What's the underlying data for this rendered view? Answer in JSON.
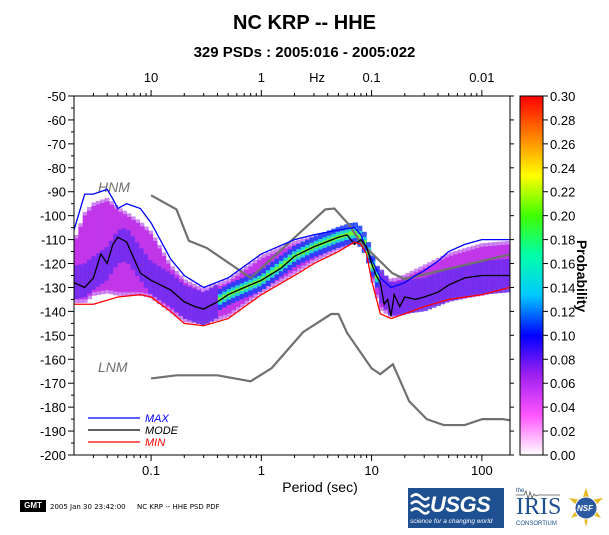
{
  "title": "NC KRP -- HHE",
  "subtitle": "329 PSDs : 2005:016 - 2005:022",
  "footer": {
    "gmt": "GMT",
    "timestamp": "2005 Jan 30 23:42:00",
    "caption": "NC KRP -- HHE PSD PDF"
  },
  "logos": {
    "usgs": "USGS",
    "usgs_tagline": "science for a changing world",
    "iris": "IRIS",
    "iris_the": "the",
    "iris_sub": "CONSORTIUM",
    "nsf": "NSF"
  },
  "chart_data": {
    "type": "heatmap",
    "xlabel": "Period (sec)",
    "x_scale": "log",
    "xlim": [
      0.02,
      180
    ],
    "x_ticks": [
      {
        "value": 0.1,
        "label": "0.1"
      },
      {
        "value": 1,
        "label": "1"
      },
      {
        "value": 10,
        "label": "10"
      },
      {
        "value": 100,
        "label": "100"
      }
    ],
    "top_axis_label": "Hz",
    "top_ticks": [
      {
        "value": 0.1,
        "label": "10"
      },
      {
        "value": 1,
        "label": "1"
      },
      {
        "value": 10,
        "label": "0.1"
      },
      {
        "value": 100,
        "label": "0.01"
      }
    ],
    "ylim": [
      -200,
      -50
    ],
    "y_ticks": [
      -50,
      -60,
      -70,
      -80,
      -90,
      -100,
      -110,
      -120,
      -130,
      -140,
      -150,
      -160,
      -170,
      -180,
      -190,
      -200
    ],
    "colorbar": {
      "label": "Probability",
      "range": [
        0.0,
        0.3
      ],
      "ticks": [
        "0.00",
        "0.02",
        "0.04",
        "0.06",
        "0.08",
        "0.10",
        "0.12",
        "0.14",
        "0.16",
        "0.18",
        "0.20",
        "0.22",
        "0.24",
        "0.26",
        "0.28",
        "0.30"
      ],
      "colors": [
        "#ffffff",
        "#ff55ff",
        "#a020f0",
        "#0000ff",
        "#00c8ff",
        "#00ffaa",
        "#40ff00",
        "#ffff00",
        "#ff8000",
        "#ff0000"
      ]
    },
    "reference_labels": {
      "nhnm": "HNM",
      "nlnm": "LNM"
    },
    "reference_color": "#707070",
    "nhnm": {
      "x": [
        0.1,
        0.17,
        0.22,
        0.32,
        0.8,
        3.8,
        4.6,
        6.3,
        7.9,
        15.4,
        20,
        354
      ],
      "y": [
        -91.5,
        -97.4,
        -110.5,
        -113.5,
        -126,
        -97.4,
        -97,
        -104,
        -111,
        -124,
        -126.5,
        -113
      ]
    },
    "nlnm": {
      "x": [
        0.1,
        0.17,
        0.4,
        0.8,
        1.24,
        2.4,
        4.3,
        5,
        6,
        10,
        12,
        15.6,
        21.9,
        31.6,
        45,
        70,
        101,
        154,
        328,
        600
      ],
      "y": [
        -168,
        -166.7,
        -166.7,
        -169.2,
        -163.7,
        -148.6,
        -141.1,
        -141.1,
        -149,
        -163.8,
        -166.2,
        -162.1,
        -177.5,
        -185,
        -187.5,
        -187.5,
        -185,
        -185,
        -187.5,
        -184.4
      ]
    },
    "legend": {
      "position": "bottom-left",
      "entries": [
        {
          "name": "MAX",
          "color": "#0000ff"
        },
        {
          "name": "MODE",
          "color": "#000000"
        },
        {
          "name": "MIN",
          "color": "#ff0000"
        }
      ]
    },
    "series": [
      {
        "name": "MAX",
        "color": "#0000ff",
        "x": [
          0.02,
          0.025,
          0.03,
          0.04,
          0.045,
          0.05,
          0.06,
          0.08,
          0.1,
          0.15,
          0.2,
          0.3,
          0.5,
          1,
          2,
          3,
          5,
          7,
          8,
          9,
          10,
          12,
          15,
          20,
          25,
          30,
          40,
          50,
          70,
          100,
          150,
          180
        ],
        "y": [
          -106,
          -91,
          -91,
          -89,
          -93,
          -97,
          -95,
          -97,
          -103,
          -118,
          -125,
          -130,
          -126,
          -116,
          -110,
          -108,
          -106,
          -105,
          -108,
          -114,
          -118,
          -126,
          -130,
          -128,
          -125,
          -123,
          -119,
          -115,
          -112,
          -110,
          -110,
          -110
        ]
      },
      {
        "name": "MODE",
        "color": "#000000",
        "x": [
          0.02,
          0.025,
          0.03,
          0.035,
          0.04,
          0.045,
          0.05,
          0.06,
          0.08,
          0.1,
          0.15,
          0.2,
          0.25,
          0.3,
          0.4,
          0.5,
          0.7,
          1,
          1.5,
          2,
          3,
          5,
          6,
          7,
          8,
          9,
          10,
          11,
          12,
          13,
          14,
          15,
          16,
          18,
          20,
          25,
          30,
          40,
          50,
          70,
          100,
          180
        ],
        "y": [
          -128,
          -130,
          -126,
          -116,
          -120,
          -112,
          -109,
          -111,
          -124,
          -127,
          -131,
          -136,
          -138,
          -139,
          -136,
          -133,
          -130,
          -127,
          -122,
          -117,
          -113,
          -109,
          -108,
          -112,
          -110,
          -113,
          -120,
          -125,
          -128,
          -137,
          -135,
          -142,
          -133,
          -138,
          -134,
          -135,
          -134,
          -132,
          -129,
          -126,
          -125,
          -125
        ]
      },
      {
        "name": "MIN",
        "color": "#ff0000",
        "x": [
          0.02,
          0.03,
          0.05,
          0.08,
          0.1,
          0.15,
          0.2,
          0.3,
          0.5,
          1,
          2,
          3,
          5,
          7,
          8,
          9,
          10,
          12,
          15,
          20,
          30,
          50,
          100,
          180
        ],
        "y": [
          -137,
          -137,
          -134,
          -133,
          -134,
          -140,
          -145,
          -146,
          -143,
          -133,
          -125,
          -120,
          -115,
          -111,
          -112,
          -116,
          -127,
          -141,
          -143,
          -141,
          -138,
          -135,
          -133,
          -130
        ]
      }
    ],
    "density_band": {
      "x": [
        0.02,
        0.025,
        0.03,
        0.04,
        0.05,
        0.06,
        0.08,
        0.1,
        0.15,
        0.2,
        0.3,
        0.5,
        1,
        2,
        3,
        5,
        7,
        8,
        9,
        10,
        12,
        15,
        20,
        30,
        50,
        100,
        180
      ],
      "upper": [
        -112,
        -100,
        -96,
        -94,
        -98,
        -100,
        -104,
        -108,
        -122,
        -128,
        -132,
        -128,
        -118,
        -112,
        -110,
        -108,
        -107,
        -110,
        -114,
        -118,
        -125,
        -128,
        -126,
        -122,
        -117,
        -113,
        -112
      ],
      "lower": [
        -135,
        -135,
        -132,
        -131,
        -132,
        -132,
        -132,
        -133,
        -139,
        -143,
        -144,
        -141,
        -131,
        -123,
        -118,
        -113,
        -110,
        -111,
        -115,
        -125,
        -138,
        -141,
        -140,
        -137,
        -134,
        -132,
        -129
      ],
      "peak": [
        -128,
        -127,
        -124,
        -120,
        -113,
        -112,
        -120,
        -126,
        -131,
        -136,
        -139,
        -133,
        -127,
        -117,
        -113,
        -109,
        -107,
        -109,
        -113,
        -120,
        -129,
        -135,
        -134,
        -133,
        -129,
        -126,
        -125
      ]
    }
  }
}
